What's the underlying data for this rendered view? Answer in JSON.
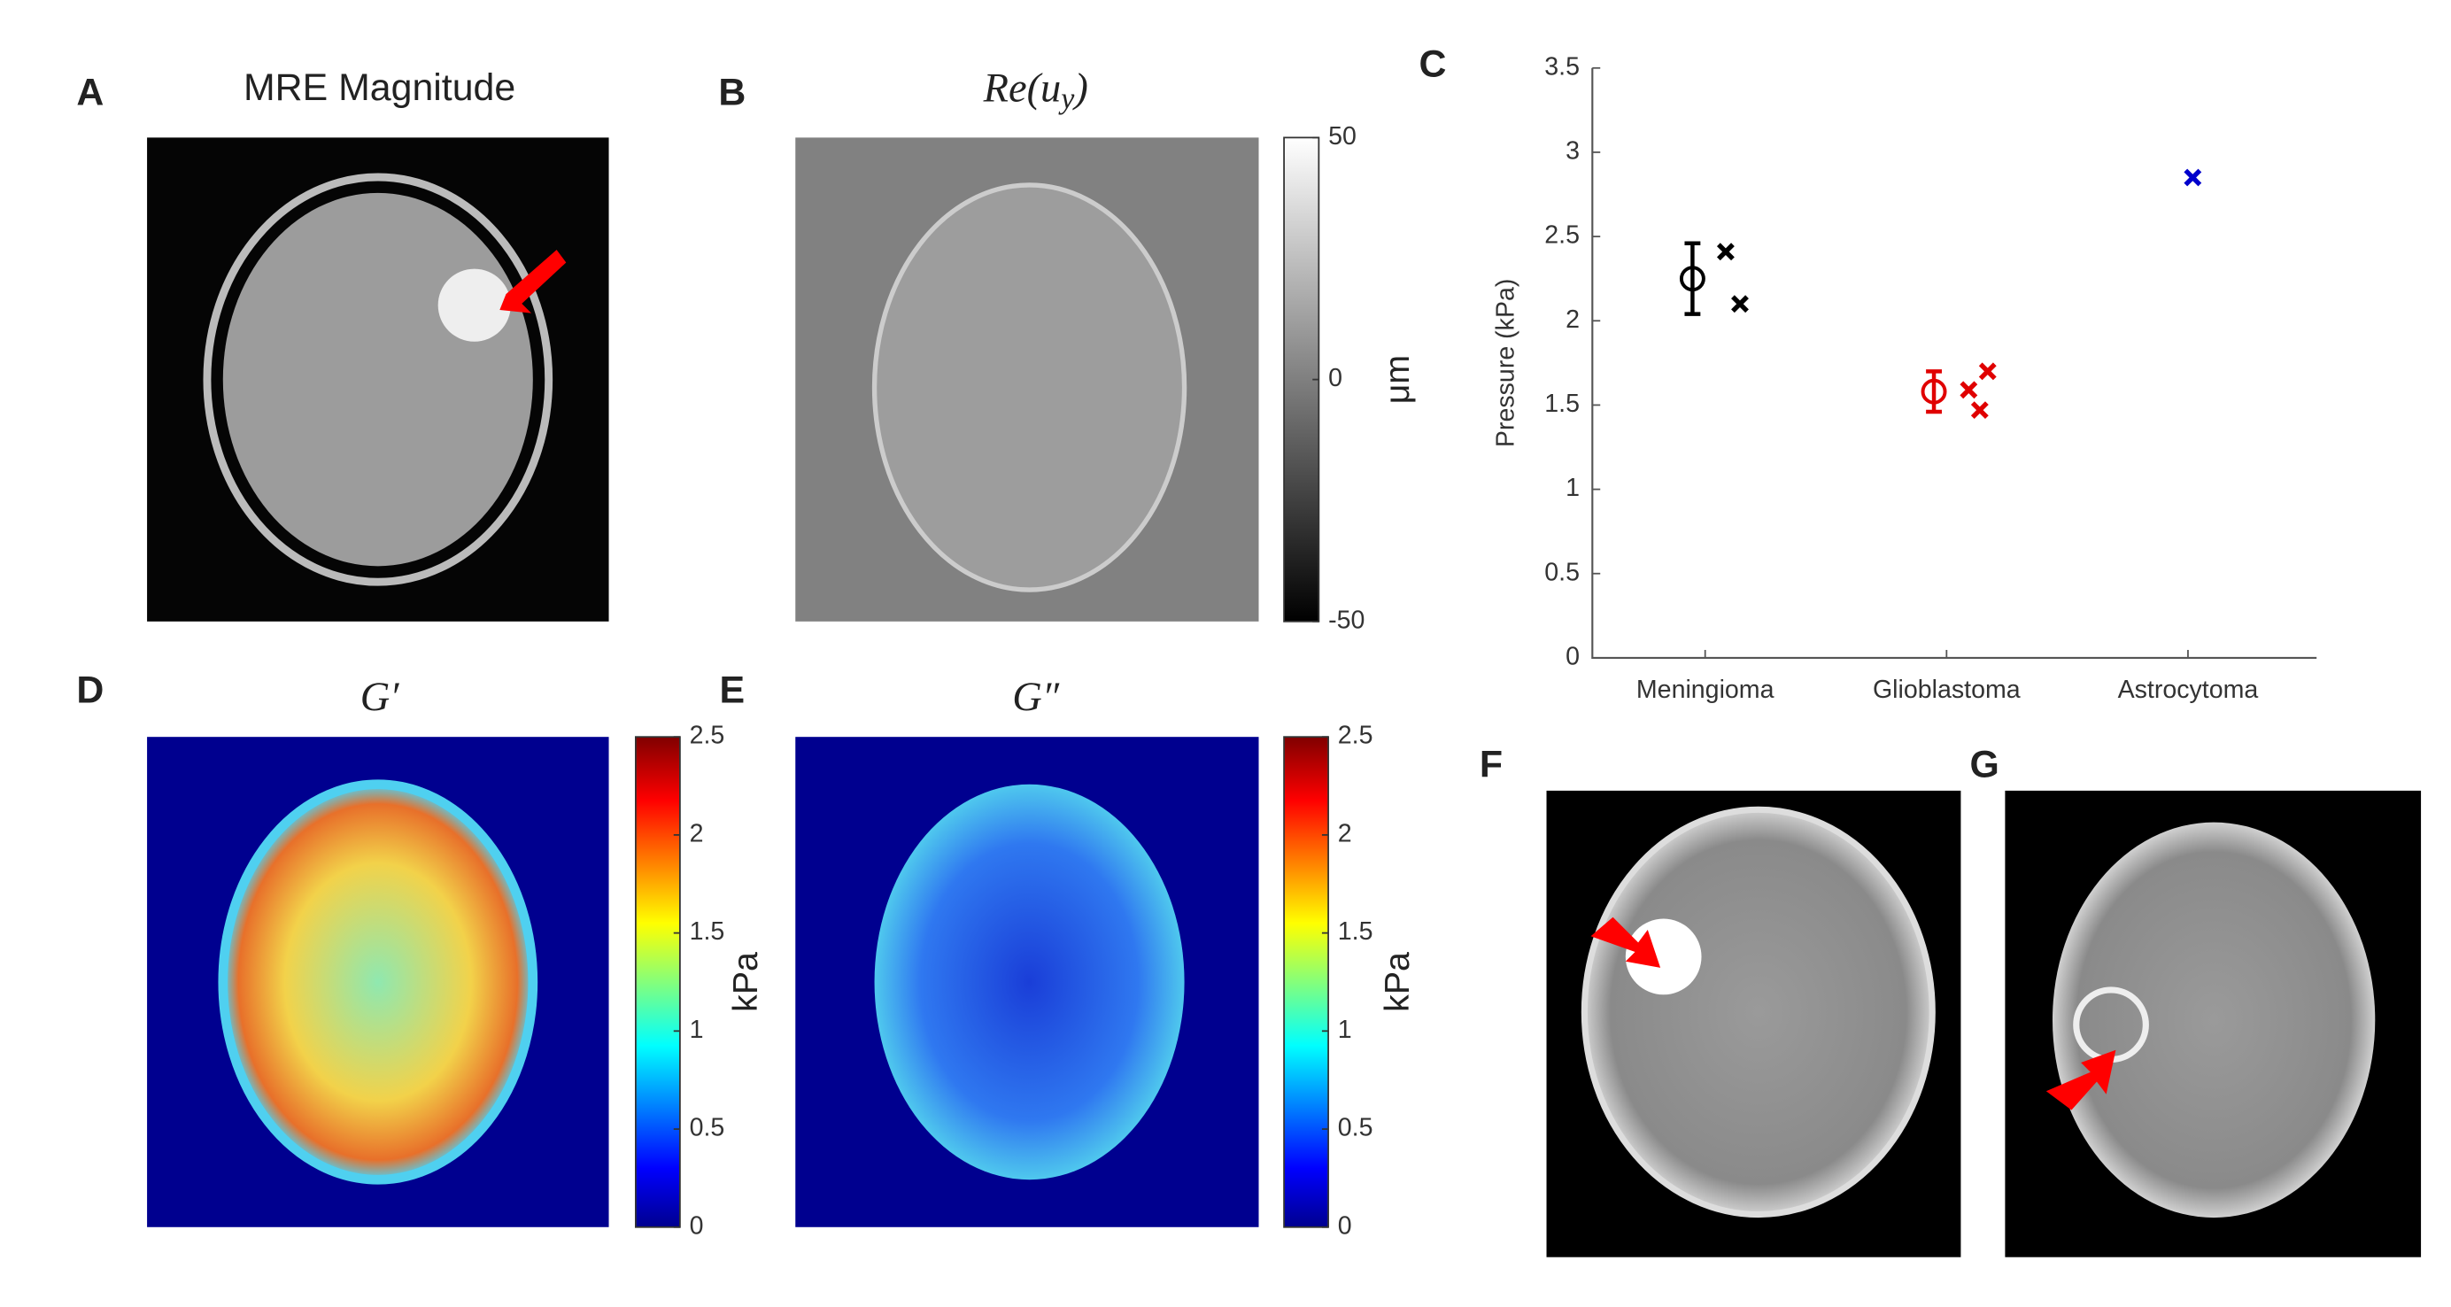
{
  "panels": [
    {
      "letter": "A",
      "title": [
        "MRE Magnitude"
      ]
    },
    {
      "letter": "B",
      "title": [
        "Re(u",
        "y",
        ")"
      ]
    },
    {
      "letter": "C"
    },
    {
      "letter": "D",
      "title": [
        "G′"
      ]
    },
    {
      "letter": "E",
      "title": [
        "G″"
      ]
    },
    {
      "letter": "F"
    },
    {
      "letter": "G"
    }
  ],
  "chart_data": [
    {
      "type": "scatter",
      "ylabel": "Pressure (kPa)",
      "categories": [
        "Meningioma",
        "Glioblastoma",
        "Astrocytoma"
      ],
      "ylim": [
        0,
        3.5
      ],
      "yticks": [
        0,
        0.5,
        1,
        1.5,
        2,
        2.5,
        3,
        3.5
      ],
      "groups": [
        {
          "color": "#000000",
          "mean": 2.25,
          "error": 0.21,
          "values": [
            2.41,
            2.1
          ]
        },
        {
          "color": "#e00000",
          "mean": 1.58,
          "error": 0.12,
          "values": [
            1.59,
            1.7,
            1.47
          ]
        },
        {
          "color": "#0000cc",
          "values": [
            2.85
          ]
        }
      ]
    },
    {
      "type": "colorbar",
      "label": "μm",
      "colormap": "gray",
      "ylim": [
        -50,
        50
      ],
      "yticks": [
        -50,
        0,
        50
      ]
    },
    {
      "type": "colorbar",
      "label": "kPa",
      "colormap": "jet",
      "ylim": [
        0,
        2.5
      ],
      "yticks": [
        0,
        0.5,
        1,
        1.5,
        2,
        2.5
      ]
    },
    {
      "type": "colorbar",
      "label": "kPa",
      "colormap": "jet",
      "ylim": [
        0,
        2.5
      ],
      "yticks": [
        0,
        0.5,
        1,
        1.5,
        2,
        2.5
      ]
    }
  ]
}
